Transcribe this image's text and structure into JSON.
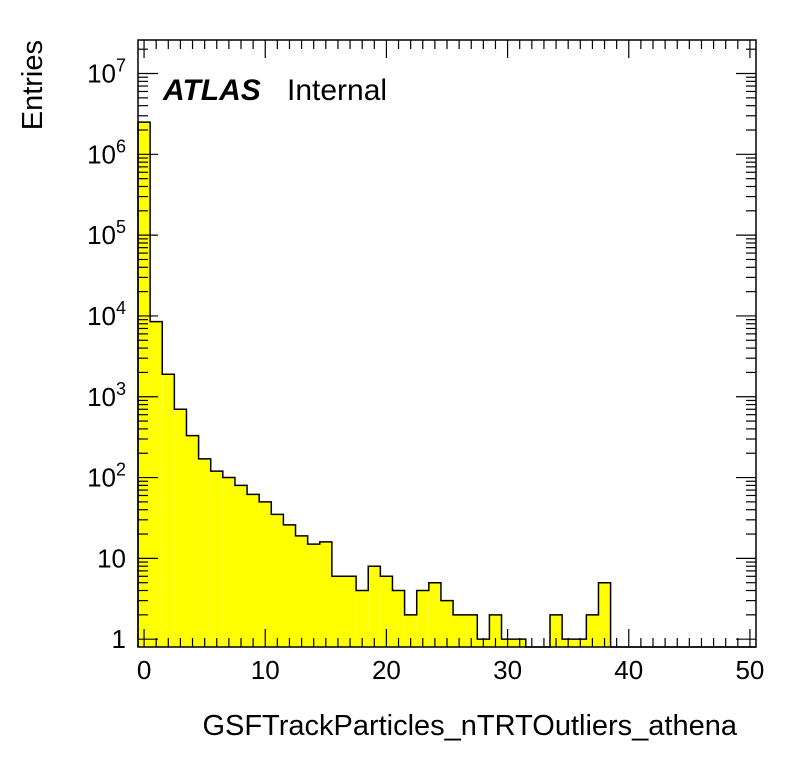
{
  "chart_data": {
    "type": "bar",
    "subtype": "histogram",
    "annotation": {
      "experiment": "ATLAS",
      "status": "Internal"
    },
    "xlabel": "GSFTrackParticles_nTRTOutliers_athena",
    "ylabel": "Entries",
    "x_tick_labels": [
      "0",
      "10",
      "20",
      "30",
      "40",
      "50"
    ],
    "y_tick_labels": [
      {
        "base": "1",
        "exp": ""
      },
      {
        "base": "10",
        "exp": ""
      },
      {
        "base": "10",
        "exp": "2"
      },
      {
        "base": "10",
        "exp": "3"
      },
      {
        "base": "10",
        "exp": "4"
      },
      {
        "base": "10",
        "exp": "5"
      },
      {
        "base": "10",
        "exp": "6"
      },
      {
        "base": "10",
        "exp": "7"
      }
    ],
    "xlim": [
      -0.5,
      50.5
    ],
    "ylim": [
      0.8,
      26000000
    ],
    "yscale": "log",
    "bin_width": 1,
    "bin_centers": [
      0,
      1,
      2,
      3,
      4,
      5,
      6,
      7,
      8,
      9,
      10,
      11,
      12,
      13,
      14,
      15,
      16,
      17,
      18,
      19,
      20,
      21,
      22,
      23,
      24,
      25,
      26,
      27,
      28,
      29,
      30,
      31,
      32,
      33,
      34,
      35,
      36,
      37,
      38,
      39,
      40,
      41,
      42,
      43,
      44,
      45,
      46,
      47,
      48,
      49,
      50
    ],
    "values": [
      2500000,
      8500,
      1900,
      700,
      330,
      170,
      120,
      100,
      80,
      62,
      50,
      35,
      26,
      19,
      15,
      16,
      6,
      6,
      4,
      8,
      6,
      4,
      2,
      4,
      5,
      3,
      2,
      2,
      1,
      2,
      1,
      1,
      0,
      0,
      2,
      1,
      1,
      2,
      5,
      0,
      0,
      0,
      0,
      0,
      0,
      0,
      0,
      0,
      0,
      0,
      0
    ],
    "colors": {
      "fill": "#ffff00",
      "line": "#000000"
    },
    "grid": false,
    "legend": "none"
  }
}
